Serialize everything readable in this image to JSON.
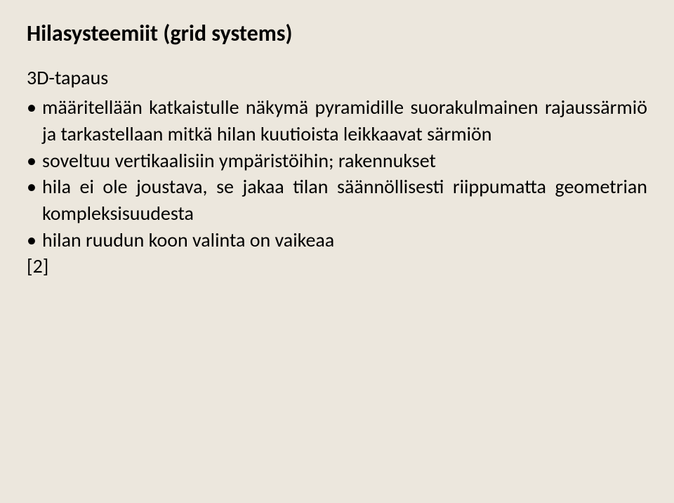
{
  "slide": {
    "title": "Hilasysteemiit (grid systems)",
    "subtitle": "3D-tapaus",
    "bullets": [
      "määritellään katkaistulle näkymä pyramidille suorakulmainen rajaussärmiö ja tarkastellaan mitkä hilan kuutioista leikkaavat särmiön",
      "soveltuu vertikaalisiin ympäristöihin; rakennukset",
      "hila ei ole joustava, se jakaa tilan säännöllisesti riippumatta geometrian kompleksisuudesta",
      "hilan ruudun koon valinta on vaikeaa"
    ],
    "reference": "[2]"
  },
  "styling": {
    "background_color": "#ece7dd",
    "text_color": "#000000",
    "title_fontsize": 32,
    "body_fontsize": 28,
    "font_family": "Calibri"
  }
}
